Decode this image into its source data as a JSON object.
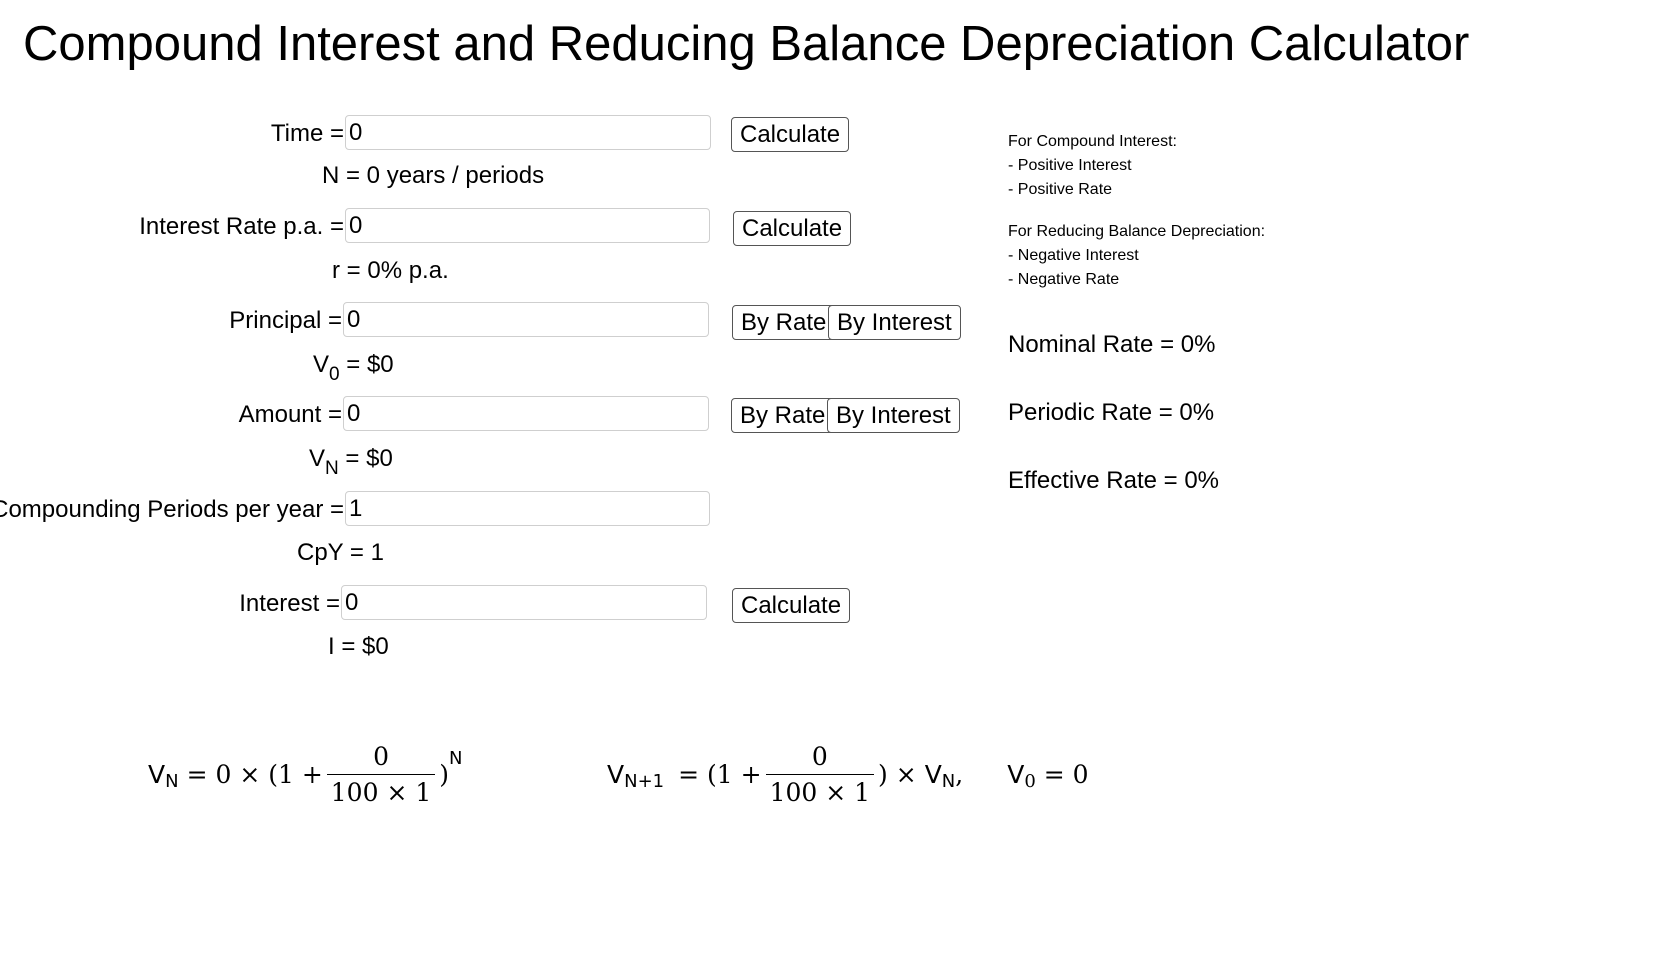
{
  "title": "Compound Interest and Reducing Balance Depreciation Calculator",
  "time": {
    "label": "Time =",
    "value": "0",
    "button": "Calculate",
    "result": "N = 0 years / periods"
  },
  "rate": {
    "label": "Interest Rate p.a. =",
    "value": "0",
    "button": "Calculate",
    "result": "r = 0% p.a."
  },
  "principal": {
    "label": "Principal =",
    "value": "0",
    "button_rate": "By Rate",
    "button_interest": "By Interest",
    "result_symbol": "V",
    "result_sub": "0",
    "result_value": "= $0"
  },
  "amount": {
    "label": "Amount =",
    "value": "0",
    "button_rate": "By Rate",
    "button_interest": "By Interest",
    "result_symbol": "V",
    "result_sub": "N",
    "result_value": "= $0"
  },
  "cpy": {
    "label": "Compounding Periods per year =",
    "value": "1",
    "result": "CpY = 1"
  },
  "interest": {
    "label": "Interest =",
    "value": "0",
    "button": "Calculate",
    "result": "I = $0"
  },
  "notes": {
    "ci_heading": "For Compound Interest:",
    "ci_1": "- Positive Interest",
    "ci_2": "- Positive Rate",
    "rb_heading": "For Reducing Balance Depreciation:",
    "rb_1": "- Negative Interest",
    "rb_2": "- Negative Rate"
  },
  "rates": {
    "nominal": "Nominal Rate = 0%",
    "periodic": "Periodic Rate = 0%",
    "effective": "Effective Rate = 0%"
  },
  "formula1": {
    "lhs": "V",
    "lhs_sub": "N",
    "eq": "= 0 × (1 +",
    "num": "0",
    "den": "100 × 1",
    "close": ")",
    "exp": "N"
  },
  "formula2": {
    "lhs": "V",
    "lhs_sub": "N+1",
    "eq": "= (1 +",
    "num": "0",
    "den": "100 × 1",
    "close": ") ×",
    "rhs": "V",
    "rhs_sub": "N",
    "comma": ",",
    "init": "V",
    "init_sub": "0",
    "init_eq": "= 0"
  }
}
